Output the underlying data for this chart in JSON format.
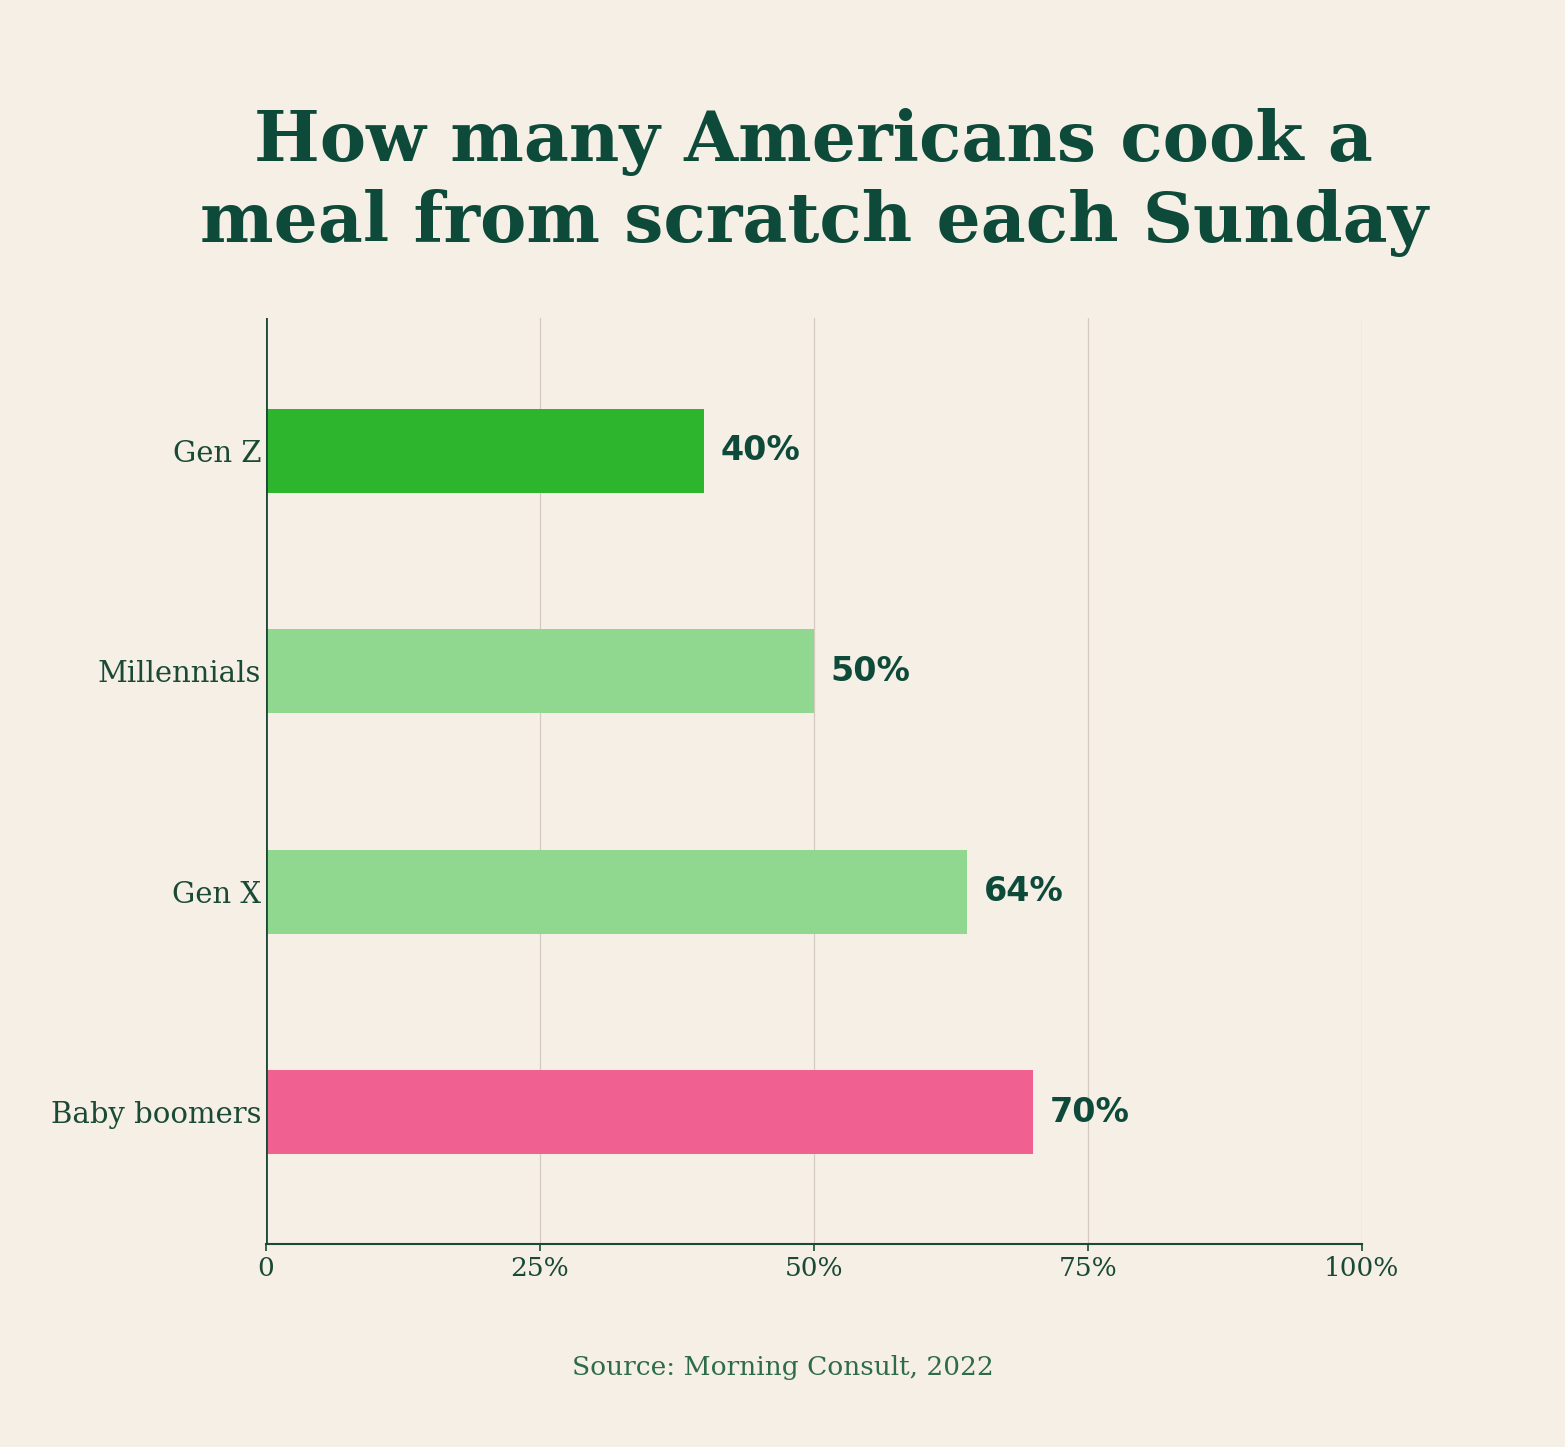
{
  "title": "How many Americans cook a\nmeal from scratch each Sunday",
  "categories": [
    "Gen Z",
    "Millennials",
    "Gen X",
    "Baby boomers"
  ],
  "values": [
    40,
    50,
    64,
    70
  ],
  "bar_colors": [
    "#2db52d",
    "#90d890",
    "#90d890",
    "#f06090"
  ],
  "label_color": "#0d4a3a",
  "value_labels": [
    "40%",
    "50%",
    "64%",
    "70%"
  ],
  "background_color": "#f5efe6",
  "title_color": "#0d4a3a",
  "source_text": "Source: Morning Consult, 2022",
  "source_color": "#2d6b4a",
  "xlim": [
    0,
    100
  ],
  "xticks": [
    0,
    25,
    50,
    75,
    100
  ],
  "xtick_labels": [
    "0",
    "25%",
    "50%",
    "75%",
    "100%"
  ],
  "bar_height": 0.38,
  "grid_color": "#d4cbbf",
  "axis_color": "#1a4a35",
  "tick_label_color": "#1a4a35",
  "y_label_color": "#1a4a35",
  "value_label_fontsize": 24,
  "y_label_fontsize": 21,
  "x_tick_fontsize": 19,
  "title_fontsize": 50,
  "source_fontsize": 19
}
